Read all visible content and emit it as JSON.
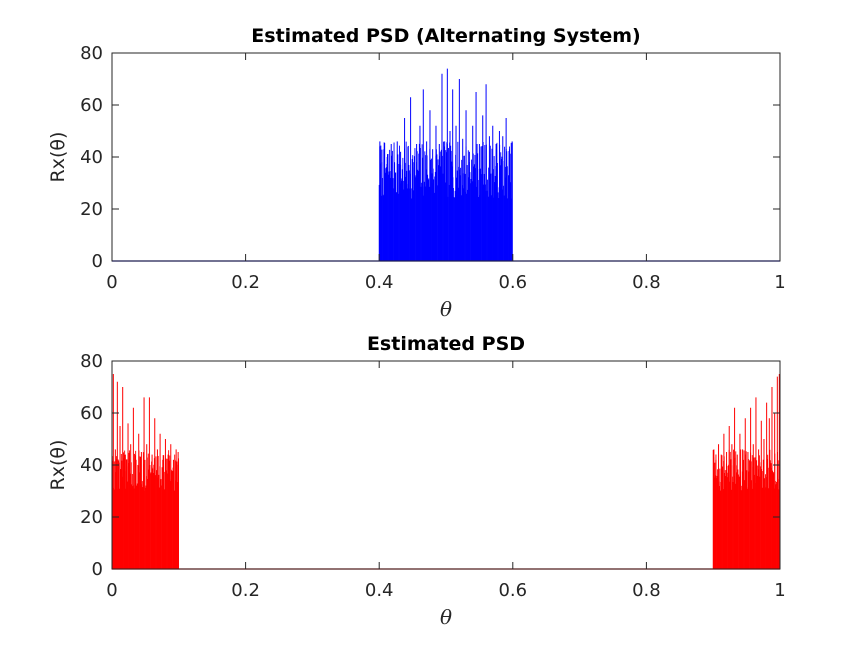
{
  "chart_data": [
    {
      "type": "line",
      "title": "Estimated PSD (Alternating System)",
      "xlabel": "θ",
      "ylabel": "Rx(θ)",
      "xlim": [
        0,
        1
      ],
      "ylim": [
        0,
        80
      ],
      "xticks": [
        "0",
        "0.2",
        "0.4",
        "0.6",
        "0.8",
        "1"
      ],
      "yticks": [
        "0",
        "20",
        "40",
        "60",
        "80"
      ],
      "grid": false,
      "legend": "none",
      "color": "#0000ff",
      "series": [
        {
          "bands": [
            [
              0.4,
              0.6
            ]
          ],
          "outside_value": 0,
          "band_floor": 24,
          "band_typical_max": 46,
          "band_peak": 74,
          "x": [
            0.401,
            0.404,
            0.407,
            0.412,
            0.418,
            0.423,
            0.427,
            0.432,
            0.438,
            0.443,
            0.447,
            0.452,
            0.456,
            0.461,
            0.466,
            0.471,
            0.476,
            0.48,
            0.485,
            0.49,
            0.494,
            0.498,
            0.502,
            0.506,
            0.51,
            0.515,
            0.52,
            0.525,
            0.53,
            0.535,
            0.54,
            0.545,
            0.55,
            0.555,
            0.56,
            0.565,
            0.57,
            0.575,
            0.58,
            0.585,
            0.59,
            0.595,
            0.599
          ],
          "y": [
            46,
            38,
            43,
            40,
            45,
            38,
            46,
            42,
            55,
            44,
            63,
            38,
            45,
            52,
            66,
            46,
            58,
            43,
            52,
            45,
            72,
            46,
            74,
            50,
            66,
            52,
            70,
            47,
            58,
            42,
            52,
            65,
            45,
            56,
            68,
            48,
            52,
            45,
            50,
            48,
            55,
            43,
            46
          ]
        }
      ]
    },
    {
      "type": "line",
      "title": "Estimated PSD",
      "xlabel": "θ",
      "ylabel": "Rx(θ)",
      "xlim": [
        0,
        1
      ],
      "ylim": [
        0,
        80
      ],
      "xticks": [
        "0",
        "0.2",
        "0.4",
        "0.6",
        "0.8",
        "1"
      ],
      "yticks": [
        "0",
        "20",
        "40",
        "60",
        "80"
      ],
      "grid": false,
      "legend": "none",
      "color": "#ff0000",
      "series": [
        {
          "bands": [
            [
              0,
              0.1
            ],
            [
              0.9,
              1
            ]
          ],
          "outside_value": 0,
          "band_floor": 30,
          "band_typical_max": 46,
          "band_peak": 75,
          "x": [
            0.002,
            0.005,
            0.008,
            0.012,
            0.016,
            0.02,
            0.024,
            0.028,
            0.032,
            0.036,
            0.04,
            0.044,
            0.048,
            0.052,
            0.056,
            0.06,
            0.064,
            0.068,
            0.072,
            0.076,
            0.08,
            0.084,
            0.088,
            0.092,
            0.096,
            0.099,
            0.901,
            0.904,
            0.908,
            0.912,
            0.916,
            0.92,
            0.924,
            0.928,
            0.932,
            0.936,
            0.94,
            0.944,
            0.948,
            0.952,
            0.956,
            0.96,
            0.964,
            0.968,
            0.972,
            0.976,
            0.98,
            0.984,
            0.988,
            0.992,
            0.996,
            0.999
          ],
          "y": [
            75,
            46,
            72,
            55,
            70,
            44,
            56,
            48,
            62,
            42,
            52,
            45,
            66,
            48,
            66,
            44,
            58,
            46,
            52,
            42,
            50,
            44,
            48,
            42,
            46,
            45,
            46,
            42,
            48,
            44,
            52,
            45,
            55,
            48,
            62,
            44,
            52,
            46,
            58,
            45,
            62,
            48,
            66,
            46,
            57,
            50,
            64,
            58,
            70,
            60,
            74,
            75
          ]
        }
      ]
    }
  ]
}
